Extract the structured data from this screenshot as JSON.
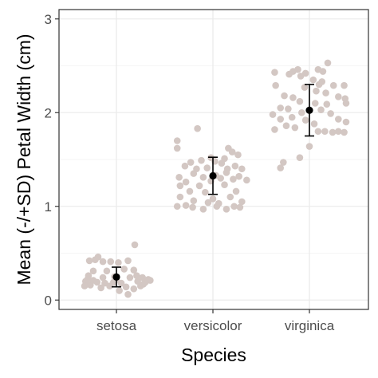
{
  "chart_data": {
    "type": "scatter",
    "title": "",
    "xlabel": "Species",
    "ylabel": "Mean (-/+SD) Petal Width (cm)",
    "categories": [
      "setosa",
      "versicolor",
      "virginica"
    ],
    "ylim": [
      -0.1,
      3.1
    ],
    "yticks": [
      0,
      1,
      2,
      3
    ],
    "grid": true,
    "colors": {
      "points": "#d3c7c3",
      "summary": "#000000",
      "panel": "#ffffff",
      "grid": "#ebebeb",
      "border": "#333333"
    },
    "summary": [
      {
        "category": "setosa",
        "mean": 0.246,
        "sd": 0.105
      },
      {
        "category": "versicolor",
        "mean": 1.326,
        "sd": 0.198
      },
      {
        "category": "virginica",
        "mean": 2.026,
        "sd": 0.275
      }
    ],
    "points": {
      "setosa": [
        {
          "x": -0.28,
          "y": 0.42
        },
        {
          "x": -0.22,
          "y": 0.43
        },
        {
          "x": -0.14,
          "y": 0.41
        },
        {
          "x": -0.06,
          "y": 0.41
        },
        {
          "x": -0.19,
          "y": 0.46
        },
        {
          "x": 0.02,
          "y": 0.4
        },
        {
          "x": 0.12,
          "y": 0.42
        },
        {
          "x": 0.19,
          "y": 0.59
        },
        {
          "x": 0.08,
          "y": 0.33
        },
        {
          "x": 0.18,
          "y": 0.32
        },
        {
          "x": -0.24,
          "y": 0.31
        },
        {
          "x": -0.1,
          "y": 0.31
        },
        {
          "x": -0.29,
          "y": 0.26
        },
        {
          "x": -0.02,
          "y": 0.25
        },
        {
          "x": 0.14,
          "y": 0.24
        },
        {
          "x": 0.27,
          "y": 0.24
        },
        {
          "x": 0.33,
          "y": 0.22
        },
        {
          "x": -0.32,
          "y": 0.2
        },
        {
          "x": -0.2,
          "y": 0.19
        },
        {
          "x": -0.12,
          "y": 0.18
        },
        {
          "x": -0.03,
          "y": 0.19
        },
        {
          "x": 0.05,
          "y": 0.18
        },
        {
          "x": 0.22,
          "y": 0.2
        },
        {
          "x": 0.3,
          "y": 0.19
        },
        {
          "x": -0.27,
          "y": 0.16
        },
        {
          "x": -0.07,
          "y": 0.15
        },
        {
          "x": 0.1,
          "y": 0.14
        },
        {
          "x": 0.25,
          "y": 0.15
        },
        {
          "x": -0.16,
          "y": 0.13
        },
        {
          "x": 0.18,
          "y": 0.12
        },
        {
          "x": 0.03,
          "y": 0.1
        },
        {
          "x": 0.12,
          "y": 0.06
        },
        {
          "x": -0.3,
          "y": 0.22
        },
        {
          "x": 0.35,
          "y": 0.21
        },
        {
          "x": -0.14,
          "y": 0.24
        },
        {
          "x": 0.0,
          "y": 0.22
        },
        {
          "x": 0.28,
          "y": 0.17
        },
        {
          "x": -0.24,
          "y": 0.21
        },
        {
          "x": 0.21,
          "y": 0.26
        },
        {
          "x": -0.33,
          "y": 0.15
        }
      ],
      "versicolor": [
        {
          "x": -0.16,
          "y": 1.83
        },
        {
          "x": -0.37,
          "y": 1.7
        },
        {
          "x": 0.16,
          "y": 1.62
        },
        {
          "x": 0.2,
          "y": 1.58
        },
        {
          "x": -0.37,
          "y": 1.62
        },
        {
          "x": 0.26,
          "y": 1.55
        },
        {
          "x": -0.02,
          "y": 1.52
        },
        {
          "x": 0.12,
          "y": 1.51
        },
        {
          "x": -0.12,
          "y": 1.49
        },
        {
          "x": -0.23,
          "y": 1.47
        },
        {
          "x": 0.02,
          "y": 1.48
        },
        {
          "x": 0.09,
          "y": 1.46
        },
        {
          "x": -0.06,
          "y": 1.41
        },
        {
          "x": 0.23,
          "y": 1.43
        },
        {
          "x": -0.17,
          "y": 1.4
        },
        {
          "x": -0.29,
          "y": 1.43
        },
        {
          "x": 0.15,
          "y": 1.4
        },
        {
          "x": 0.3,
          "y": 1.4
        },
        {
          "x": -0.35,
          "y": 1.31
        },
        {
          "x": -0.2,
          "y": 1.35
        },
        {
          "x": 0.03,
          "y": 1.33
        },
        {
          "x": 0.14,
          "y": 1.36
        },
        {
          "x": 0.27,
          "y": 1.32
        },
        {
          "x": -0.1,
          "y": 1.31
        },
        {
          "x": 0.08,
          "y": 1.3
        },
        {
          "x": -0.28,
          "y": 1.26
        },
        {
          "x": 0.21,
          "y": 1.29
        },
        {
          "x": -0.02,
          "y": 1.27
        },
        {
          "x": -0.34,
          "y": 1.22
        },
        {
          "x": -0.14,
          "y": 1.22
        },
        {
          "x": 0.12,
          "y": 1.23
        },
        {
          "x": 0.35,
          "y": 1.28
        },
        {
          "x": -0.24,
          "y": 1.16
        },
        {
          "x": -0.08,
          "y": 1.15
        },
        {
          "x": 0.24,
          "y": 1.16
        },
        {
          "x": -0.34,
          "y": 1.1
        },
        {
          "x": 0.0,
          "y": 1.08
        },
        {
          "x": 0.18,
          "y": 1.1
        },
        {
          "x": -0.2,
          "y": 1.06
        },
        {
          "x": -0.37,
          "y": 1.0
        },
        {
          "x": -0.21,
          "y": 0.99
        },
        {
          "x": -0.1,
          "y": 0.97
        },
        {
          "x": 0.04,
          "y": 1.0
        },
        {
          "x": 0.22,
          "y": 1.0
        },
        {
          "x": 0.28,
          "y": 0.99
        },
        {
          "x": 0.14,
          "y": 0.97
        },
        {
          "x": -0.28,
          "y": 1.01
        },
        {
          "x": 0.3,
          "y": 1.05
        },
        {
          "x": -0.05,
          "y": 1.04
        },
        {
          "x": 0.06,
          "y": 1.03
        }
      ],
      "virginica": [
        {
          "x": 0.19,
          "y": 2.53
        },
        {
          "x": 0.09,
          "y": 2.46
        },
        {
          "x": 0.14,
          "y": 2.44
        },
        {
          "x": -0.36,
          "y": 2.43
        },
        {
          "x": -0.17,
          "y": 2.44
        },
        {
          "x": -0.12,
          "y": 2.46
        },
        {
          "x": -0.04,
          "y": 2.42
        },
        {
          "x": -0.21,
          "y": 2.41
        },
        {
          "x": -0.09,
          "y": 2.39
        },
        {
          "x": 0.04,
          "y": 2.35
        },
        {
          "x": 0.13,
          "y": 2.33
        },
        {
          "x": 0.1,
          "y": 2.3
        },
        {
          "x": 0.25,
          "y": 2.29
        },
        {
          "x": 0.36,
          "y": 2.29
        },
        {
          "x": -0.35,
          "y": 2.29
        },
        {
          "x": -0.05,
          "y": 2.27
        },
        {
          "x": 0.07,
          "y": 2.23
        },
        {
          "x": 0.17,
          "y": 2.21
        },
        {
          "x": -0.26,
          "y": 2.18
        },
        {
          "x": -0.17,
          "y": 2.16
        },
        {
          "x": 0.3,
          "y": 2.17
        },
        {
          "x": 0.37,
          "y": 2.15
        },
        {
          "x": -0.1,
          "y": 2.12
        },
        {
          "x": 0.06,
          "y": 2.1
        },
        {
          "x": 0.18,
          "y": 2.09
        },
        {
          "x": -0.3,
          "y": 2.05
        },
        {
          "x": -0.22,
          "y": 2.04
        },
        {
          "x": 0.12,
          "y": 2.03
        },
        {
          "x": -0.38,
          "y": 1.98
        },
        {
          "x": -0.08,
          "y": 2.0
        },
        {
          "x": 0.22,
          "y": 1.99
        },
        {
          "x": -0.18,
          "y": 1.95
        },
        {
          "x": -0.3,
          "y": 1.93
        },
        {
          "x": 0.3,
          "y": 1.93
        },
        {
          "x": -0.04,
          "y": 1.92
        },
        {
          "x": 0.05,
          "y": 1.88
        },
        {
          "x": 0.38,
          "y": 1.9
        },
        {
          "x": -0.24,
          "y": 1.86
        },
        {
          "x": -0.15,
          "y": 1.84
        },
        {
          "x": 0.09,
          "y": 1.8
        },
        {
          "x": 0.16,
          "y": 1.8
        },
        {
          "x": 0.24,
          "y": 1.79
        },
        {
          "x": 0.3,
          "y": 1.8
        },
        {
          "x": 0.36,
          "y": 1.79
        },
        {
          "x": -0.36,
          "y": 1.82
        },
        {
          "x": 0.0,
          "y": 1.64
        },
        {
          "x": -0.1,
          "y": 1.52
        },
        {
          "x": -0.27,
          "y": 1.47
        },
        {
          "x": -0.3,
          "y": 1.41
        },
        {
          "x": 0.38,
          "y": 2.1
        }
      ]
    }
  }
}
